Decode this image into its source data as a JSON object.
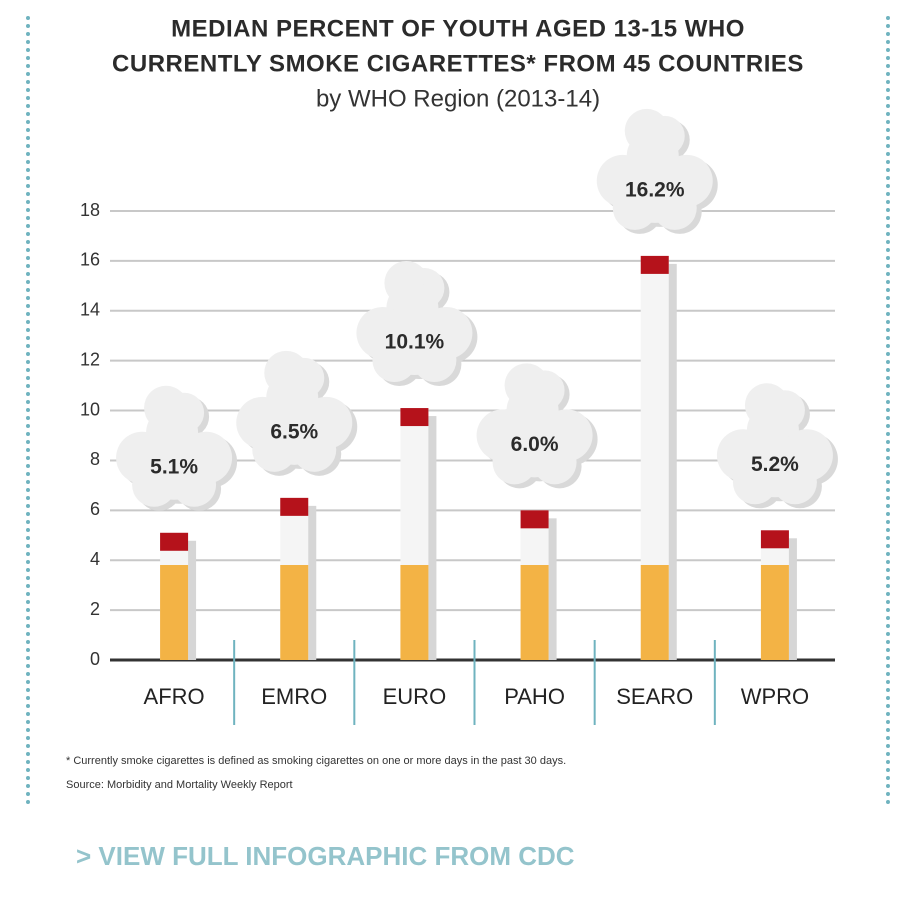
{
  "chart_data": {
    "type": "bar",
    "title": [
      "MEDIAN PERCENT OF YOUTH AGED 13-15 WHO",
      "CURRENTLY SMOKE CIGARETTES* FROM 45 COUNTRIES"
    ],
    "subtitle": "by WHO Region (2013-14)",
    "categories": [
      "AFRO",
      "EMRO",
      "EURO",
      "PAHO",
      "SEARO",
      "WPRO"
    ],
    "values": [
      5.1,
      6.5,
      10.1,
      6.0,
      16.2,
      5.2
    ],
    "value_labels": [
      "5.1%",
      "6.5%",
      "10.1%",
      "6.0%",
      "16.2%",
      "5.2%"
    ],
    "ylim": [
      0,
      18
    ],
    "yticks": [
      0,
      2,
      4,
      6,
      8,
      10,
      12,
      14,
      16,
      18
    ],
    "grid": true,
    "color": "#f5f5f5"
  },
  "footnote": "* Currently smoke cigarettes is defined as smoking cigarettes on one or more days in the past 30 days.",
  "source": "Source: Morbidity and Mortality Weekly Report",
  "link": "> VIEW FULL INFOGRAPHIC FROM CDC"
}
